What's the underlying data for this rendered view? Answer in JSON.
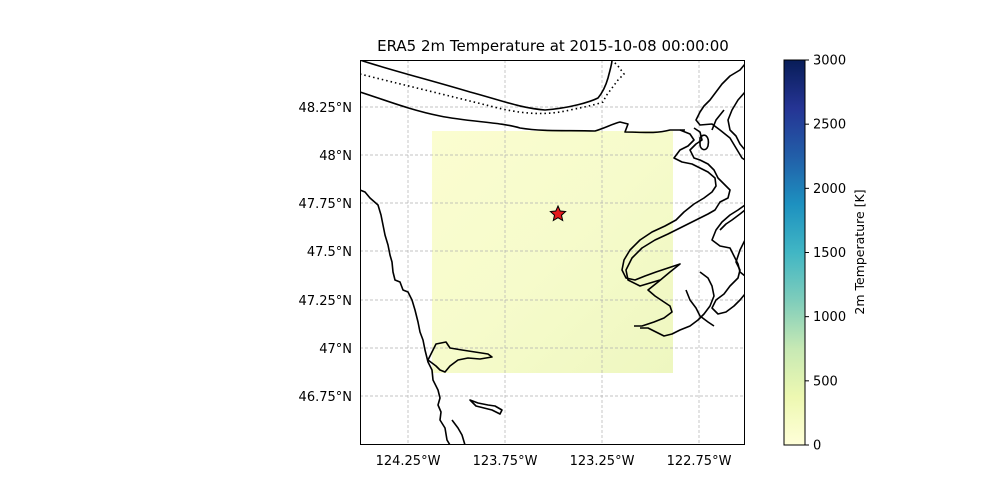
{
  "chart_data": {
    "type": "heatmap",
    "title": "ERA5 2m Temperature at 2015-10-08 00:00:00",
    "x_ticks": [
      "124.25°W",
      "123.75°W",
      "123.25°W",
      "122.75°W"
    ],
    "y_ticks": [
      "48.25°N",
      "48°N",
      "47.75°N",
      "47.5°N",
      "47.25°N",
      "47°N",
      "46.75°N"
    ],
    "lon_range": [
      -124.57,
      -122.57
    ],
    "lat_range": [
      46.52,
      48.49
    ],
    "grid": true,
    "data_extent": {
      "lon": [
        -124.2,
        -122.95
      ],
      "lat": [
        46.87,
        48.12
      ]
    },
    "field_value_approx_K": 285,
    "marker": {
      "symbol": "star",
      "color": "#e31a1c",
      "lon": -123.54,
      "lat": 47.69
    },
    "colorbar": {
      "label": "2m Temperature [K]",
      "colormap": "YlGnBu",
      "range": [
        0,
        3000
      ],
      "ticks": [
        "0",
        "500",
        "1000",
        "1500",
        "2000",
        "2500",
        "3000"
      ],
      "tick_values": [
        0,
        500,
        1000,
        1500,
        2000,
        2500,
        3000
      ],
      "placement": "right"
    }
  }
}
